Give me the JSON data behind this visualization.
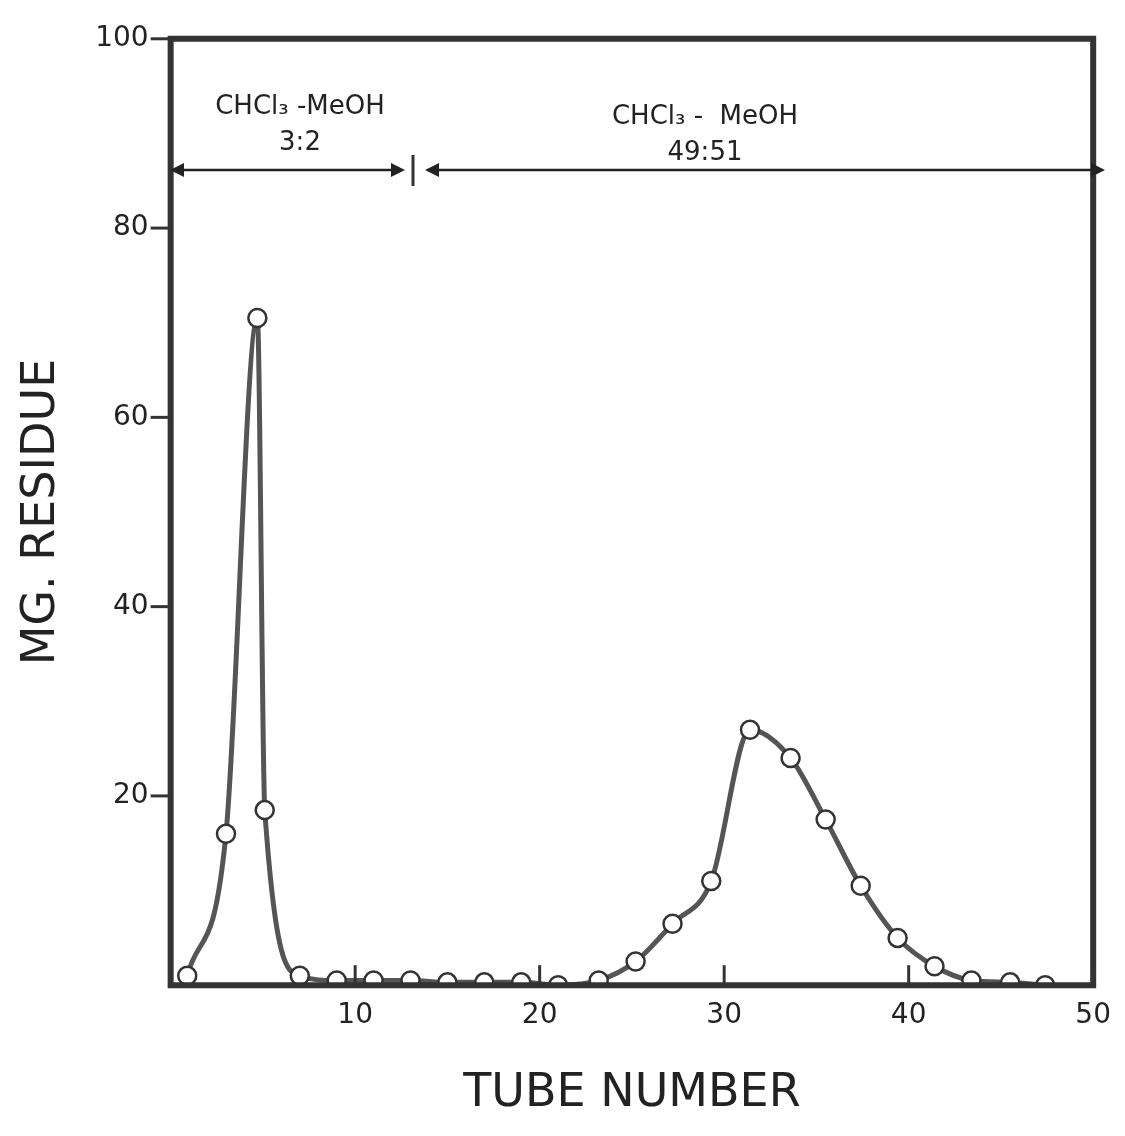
{
  "chart_data": {
    "type": "line",
    "xlabel": "TUBE NUMBER",
    "ylabel": "MG. RESIDUE",
    "xlim": [
      0,
      50
    ],
    "xticks": [
      10,
      20,
      30,
      40,
      50
    ],
    "ylim": [
      0,
      100
    ],
    "yticks": [
      20,
      40,
      60,
      80,
      100
    ],
    "grid": false,
    "legend": false,
    "marker": "circle",
    "line_style": "solid",
    "series": [
      {
        "color": "#555555",
        "x": [
          0.9,
          3,
          4.7,
          5.1,
          7,
          9,
          11,
          13,
          15,
          17,
          19,
          21,
          23.2,
          25.2,
          27.2,
          29.3,
          31.4,
          33.6,
          35.5,
          37.4,
          39.4,
          41.4,
          43.4,
          45.5,
          47.4
        ],
        "values": [
          1,
          16,
          70.5,
          18.5,
          1,
          0.5,
          0.5,
          0.5,
          0.3,
          0.3,
          0.3,
          0,
          0.5,
          2.5,
          6.5,
          11,
          27,
          24,
          17.5,
          10.5,
          5,
          2,
          0.5,
          0.3,
          0
        ]
      }
    ],
    "annotations": [
      "CHCl₃ -MeOH\n3:2",
      "CHCl₃ -  MeOH\n49:51"
    ]
  }
}
